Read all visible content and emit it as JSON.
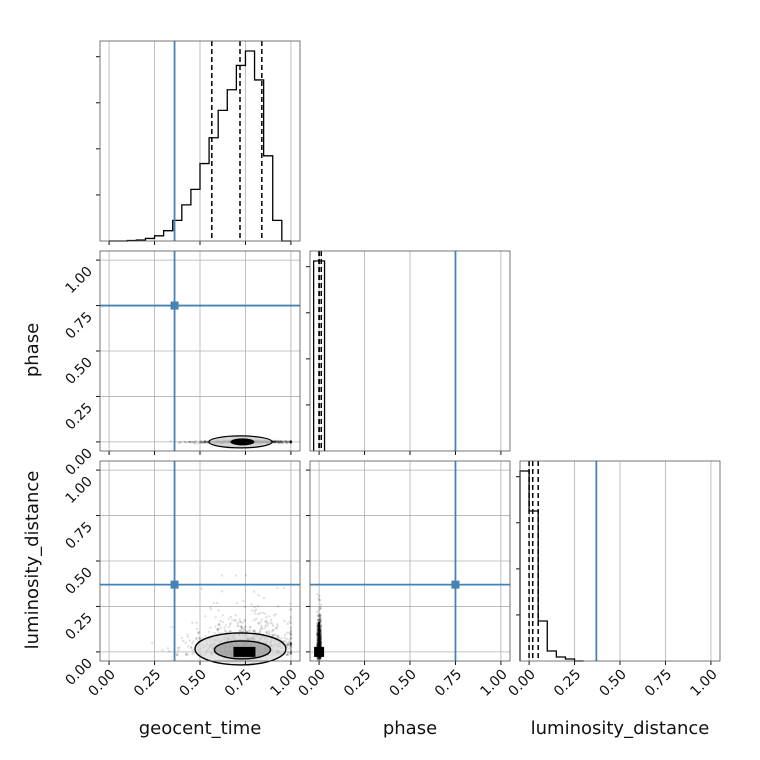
{
  "chart_data": {
    "type": "corner",
    "parameters": [
      "geocent_time",
      "phase",
      "luminosity_distance"
    ],
    "labels": [
      "geocent_time",
      "phase",
      "luminosity_distance"
    ],
    "range": [
      -0.05,
      1.05
    ],
    "ticks": [
      0.0,
      0.25,
      0.5,
      0.75,
      1.0
    ],
    "tick_labels": [
      "0.00",
      "0.25",
      "0.50",
      "0.75",
      "1.00"
    ],
    "truths": [
      0.36,
      0.75,
      0.37
    ],
    "truth_color": "#4682b4",
    "grid": true,
    "histograms": [
      {
        "parameter": "geocent_time",
        "bin_edges": [
          0.0,
          0.05,
          0.1,
          0.15,
          0.2,
          0.25,
          0.3,
          0.35,
          0.4,
          0.45,
          0.5,
          0.55,
          0.6,
          0.65,
          0.7,
          0.75,
          0.8,
          0.85,
          0.9,
          0.95,
          1.0
        ],
        "counts": [
          0,
          0,
          1,
          2,
          5,
          10,
          20,
          40,
          70,
          100,
          150,
          200,
          253,
          293,
          340,
          368,
          312,
          165,
          40,
          0
        ],
        "quantiles": [
          0.565,
          0.72,
          0.84
        ]
      },
      {
        "parameter": "phase",
        "bin_edges": [
          -0.03,
          0.0,
          0.03
        ],
        "counts": [
          1,
          1
        ],
        "quantiles": [
          0.0,
          0.0,
          0.012
        ]
      },
      {
        "parameter": "luminosity_distance",
        "bin_edges": [
          -0.05,
          0.0,
          0.05,
          0.1,
          0.15,
          0.2,
          0.25,
          0.3
        ],
        "counts": [
          380,
          300,
          80,
          20,
          8,
          4,
          0
        ],
        "quantiles": [
          0.0,
          0.02,
          0.05
        ]
      }
    ],
    "scatter_2d": [
      {
        "x": "geocent_time",
        "y": "phase",
        "x_extent": [
          0.15,
          1.0
        ],
        "y_extent": [
          -0.01,
          0.01
        ],
        "contour_x_extent": [
          0.5,
          0.95
        ],
        "contour_center": [
          0.75,
          0.0
        ]
      },
      {
        "x": "geocent_time",
        "y": "luminosity_distance",
        "x_extent": [
          0.1,
          1.0
        ],
        "y_extent": [
          -0.05,
          0.42
        ],
        "contour_x_extent": [
          0.45,
          0.95
        ],
        "contour_center": [
          0.75,
          0.0
        ]
      },
      {
        "x": "phase",
        "y": "luminosity_distance",
        "x_extent": [
          -0.01,
          0.01
        ],
        "y_extent": [
          -0.05,
          0.42
        ],
        "contour_x_extent": [
          -0.01,
          0.01
        ],
        "contour_center": [
          0.0,
          0.0
        ]
      }
    ]
  }
}
